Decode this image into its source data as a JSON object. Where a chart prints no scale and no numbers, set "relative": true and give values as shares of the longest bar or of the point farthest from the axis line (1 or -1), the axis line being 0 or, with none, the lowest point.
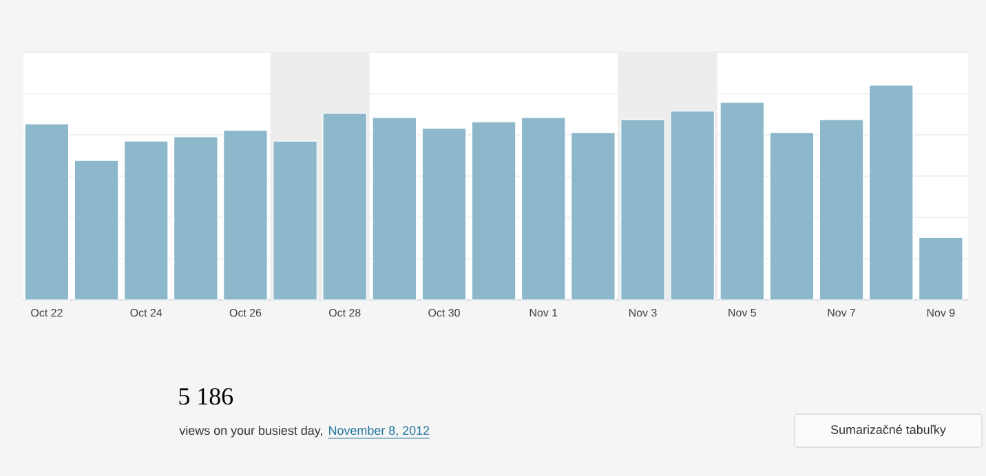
{
  "chart_data": {
    "type": "bar",
    "relative": true,
    "color": "#8db8cc",
    "grid": "y",
    "categories": [
      "Oct 22",
      null,
      "Oct 24",
      null,
      "Oct 26",
      null,
      "Oct 28",
      null,
      "Oct 30",
      null,
      "Nov 1",
      null,
      "Nov 3",
      null,
      "Nov 5",
      null,
      "Nov 7",
      null,
      "Nov 9"
    ],
    "values": [
      0.82,
      0.65,
      0.74,
      0.76,
      0.79,
      0.74,
      0.87,
      0.85,
      0.8,
      0.83,
      0.85,
      0.78,
      0.84,
      0.88,
      0.92,
      0.78,
      0.84,
      1,
      0.29
    ],
    "annotations": [
      "5 186",
      "views on your busiest day,",
      "November 8, 2012",
      "Sumarizačné tabuľky"
    ]
  }
}
